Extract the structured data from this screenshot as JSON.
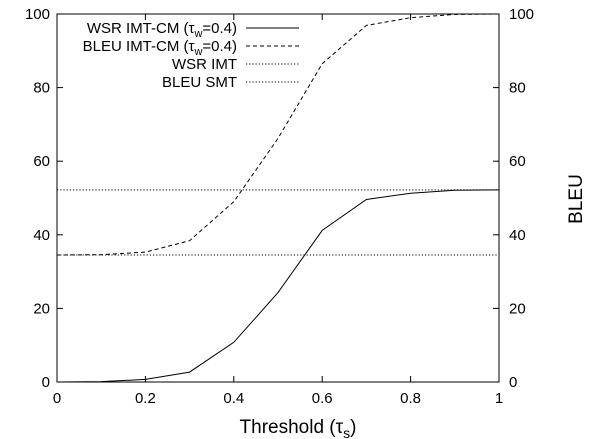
{
  "chart_data": {
    "type": "line",
    "xlabel": "Threshold (τs)",
    "xlabel_main": "Threshold (τ",
    "xlabel_sub": "s",
    "xlabel_close": ")",
    "ylabel_right": "BLEU",
    "xlim": [
      0,
      1
    ],
    "ylim": [
      0,
      100
    ],
    "x_ticks": [
      "0",
      "0.2",
      "0.4",
      "0.6",
      "0.8",
      "1"
    ],
    "y_ticks_left": [
      "0",
      "20",
      "40",
      "60",
      "80",
      "100"
    ],
    "y_ticks_right": [
      "0",
      "20",
      "40",
      "60",
      "80",
      "100"
    ],
    "grid": false,
    "legend_position": "top-left",
    "series": [
      {
        "name": "WSR IMT-CM (τw=0.4)",
        "legend_main": "WSR IMT-CM (τ",
        "legend_sub": "w",
        "legend_tail": "=0.4)",
        "style": "solid",
        "x": [
          0,
          0.1,
          0.2,
          0.3,
          0.4,
          0.5,
          0.6,
          0.7,
          0.8,
          0.9,
          1.0
        ],
        "y": [
          0,
          0.1,
          0.7,
          2.7,
          10.8,
          24.3,
          41.2,
          49.6,
          51.3,
          52.1,
          52.2
        ]
      },
      {
        "name": "BLEU IMT-CM (τw=0.4)",
        "legend_main": "BLEU IMT-CM (τ",
        "legend_sub": "w",
        "legend_tail": "=0.4)",
        "style": "dashed",
        "x": [
          0,
          0.1,
          0.2,
          0.3,
          0.4,
          0.5,
          0.6,
          0.7,
          0.8,
          0.9,
          1.0
        ],
        "y": [
          34.5,
          34.6,
          35.3,
          38.4,
          49.0,
          66.2,
          86.5,
          96.9,
          99.0,
          99.9,
          100
        ]
      },
      {
        "name": "WSR IMT",
        "legend_main": "WSR IMT",
        "legend_sub": "",
        "legend_tail": "",
        "style": "dotted",
        "x": [
          0,
          1
        ],
        "y": [
          52.2,
          52.2
        ]
      },
      {
        "name": "BLEU SMT",
        "legend_main": "BLEU SMT",
        "legend_sub": "",
        "legend_tail": "",
        "style": "dotted",
        "x": [
          0,
          1
        ],
        "y": [
          34.5,
          34.5
        ]
      }
    ]
  }
}
